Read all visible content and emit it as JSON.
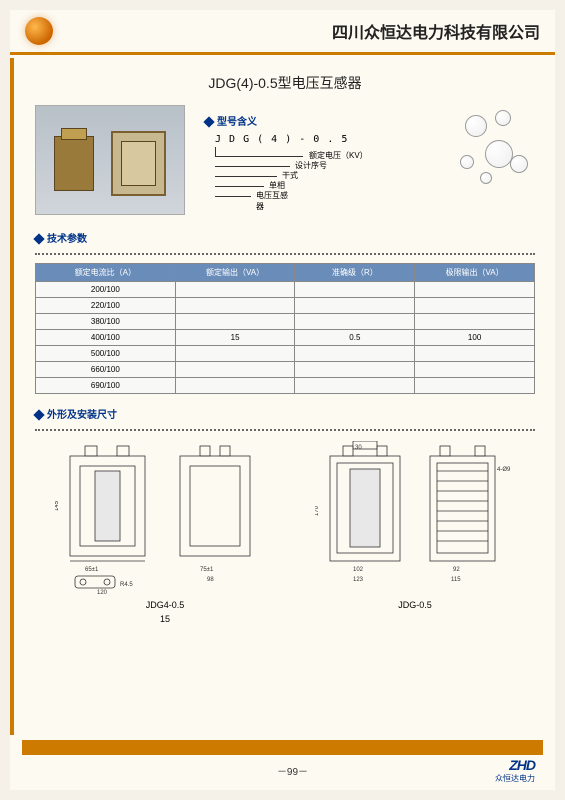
{
  "header": {
    "company": "四川众恒达电力科技有限公司"
  },
  "product": {
    "title": "JDG(4)-0.5型电压互感器",
    "model_section_title": "型号含义",
    "model_code": "J D G ( 4 ) - 0 . 5",
    "model_meanings": [
      "额定电压（KV）",
      "设计序号",
      "干式",
      "单相",
      "电压互感器"
    ]
  },
  "tech": {
    "section_title": "技术参数",
    "columns": [
      "额定电流比（A）",
      "额定输出（VA）",
      "准确级（R）",
      "极限输出（VA）"
    ],
    "rows": [
      [
        "200/100",
        "",
        "",
        ""
      ],
      [
        "220/100",
        "",
        "",
        ""
      ],
      [
        "380/100",
        "",
        "",
        ""
      ],
      [
        "400/100",
        "15",
        "0.5",
        "100"
      ],
      [
        "500/100",
        "",
        "",
        ""
      ],
      [
        "660/100",
        "",
        "",
        ""
      ],
      [
        "690/100",
        "",
        "",
        ""
      ]
    ]
  },
  "dimensions": {
    "section_title": "外形及安装尺寸",
    "labels": {
      "left": "JDG4-0.5",
      "left_sub": "15",
      "right": "JDG-0.5"
    },
    "values": {
      "h145": "145",
      "w65": "65±1",
      "w120": "120",
      "r45": "R4.5",
      "w75": "75±1",
      "w98": "98",
      "h170": "170",
      "w102": "102",
      "w123": "123",
      "t30": "30",
      "phi": "4-Ø9",
      "w92": "92",
      "w115": "115"
    }
  },
  "footer": {
    "page": "－99－",
    "brand_logo": "ZHD",
    "brand_text": "众恒达电力"
  },
  "colors": {
    "accent": "#cc7a00",
    "blue": "#003388",
    "th_bg": "#6a8cb8"
  }
}
